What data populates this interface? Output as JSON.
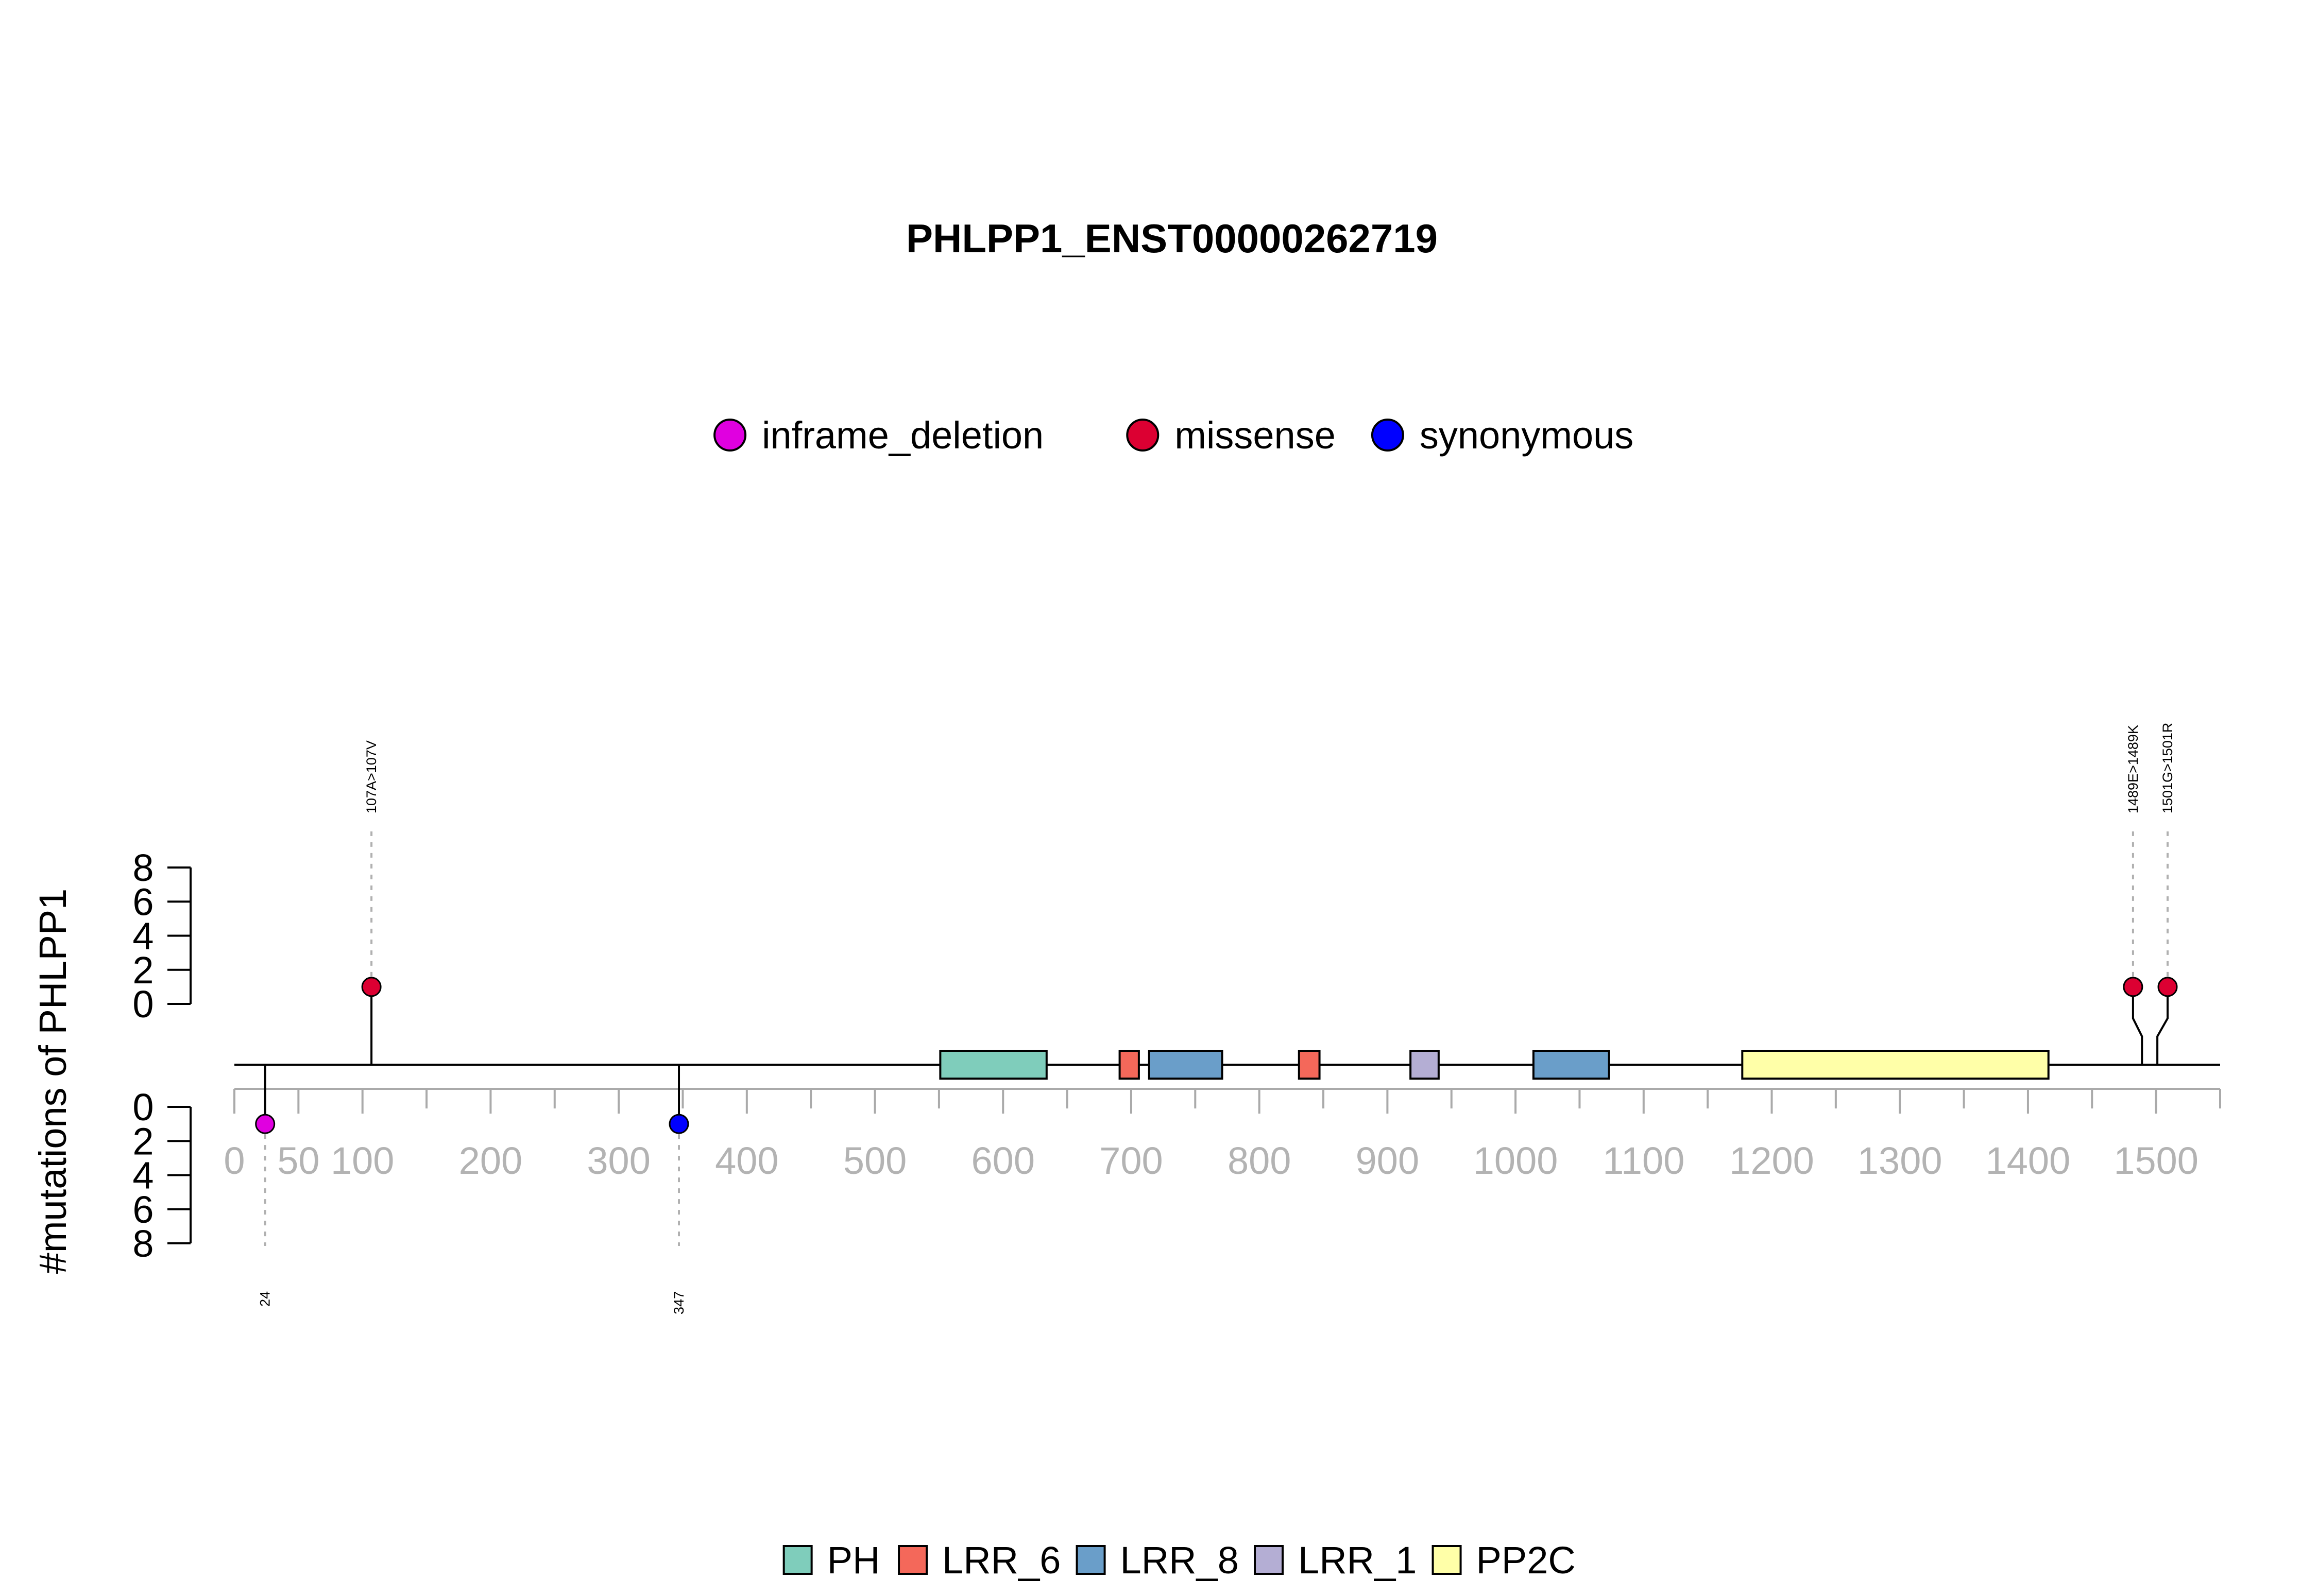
{
  "chart_data": {
    "type": "lollipop",
    "title": "PHLPP1_ENST00000262719",
    "ylabel": "#mutations of PHLPP1",
    "xlim": [
      0,
      1550
    ],
    "x_ticks": [
      0,
      50,
      100,
      200,
      300,
      400,
      500,
      600,
      700,
      800,
      900,
      1000,
      1100,
      1200,
      1300,
      1400,
      1500
    ],
    "y_ticks_top": [
      0,
      2,
      4,
      6,
      8
    ],
    "y_ticks_bottom": [
      0,
      2,
      4,
      6,
      8
    ],
    "ylim_top": [
      0,
      8
    ],
    "ylim_bottom": [
      0,
      8
    ],
    "legend_top": {
      "placement": "top-center",
      "entries": [
        {
          "label": "inframe_deletion",
          "color": "#e000e0"
        },
        {
          "label": "missense",
          "color": "#dc0032"
        },
        {
          "label": "synonymous",
          "color": "#0000ff"
        }
      ]
    },
    "legend_bottom": {
      "placement": "bottom-center",
      "entries": [
        {
          "label": "PH",
          "color": "#7fcdbb"
        },
        {
          "label": "LRR_6",
          "color": "#f4685a"
        },
        {
          "label": "LRR_8",
          "color": "#6a9ec9"
        },
        {
          "label": "LRR_1",
          "color": "#b4aed4"
        },
        {
          "label": "PP2C",
          "color": "#ffffa8"
        }
      ]
    },
    "domains": [
      {
        "name": "PH",
        "start": 551,
        "end": 634,
        "color": "#7fcdbb"
      },
      {
        "name": "LRR_6",
        "start": 691,
        "end": 706,
        "color": "#f4685a"
      },
      {
        "name": "LRR_8",
        "start": 714,
        "end": 771,
        "color": "#6a9ec9"
      },
      {
        "name": "LRR_6",
        "start": 831,
        "end": 847,
        "color": "#f4685a"
      },
      {
        "name": "LRR_1",
        "start": 918,
        "end": 940,
        "color": "#b4aed4"
      },
      {
        "name": "LRR_8",
        "start": 1014,
        "end": 1073,
        "color": "#6a9ec9"
      },
      {
        "name": "PP2C",
        "start": 1177,
        "end": 1416,
        "color": "#ffffa8"
      }
    ],
    "mutations": [
      {
        "position": 24,
        "label": "24",
        "type": "inframe_deletion",
        "count": 1,
        "side": "bottom",
        "color": "#e000e0"
      },
      {
        "position": 107,
        "label": "107A>107V",
        "type": "missense",
        "count": 1,
        "side": "top",
        "color": "#dc0032"
      },
      {
        "position": 347,
        "label": "347",
        "type": "synonymous",
        "count": 1,
        "side": "bottom",
        "color": "#0000ff"
      },
      {
        "position": 1489,
        "label": "1489E>1489K",
        "type": "missense",
        "count": 1,
        "side": "top",
        "color": "#dc0032",
        "display_position": 1482
      },
      {
        "position": 1501,
        "label": "1501G>1501R",
        "type": "missense",
        "count": 1,
        "side": "top",
        "color": "#dc0032",
        "display_position": 1509
      }
    ]
  }
}
